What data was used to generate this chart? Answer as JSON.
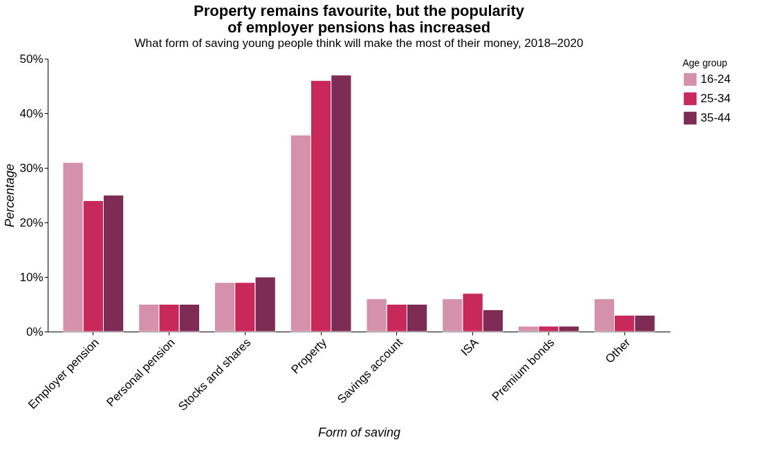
{
  "chart_data": {
    "type": "bar",
    "title": [
      "Property remains favourite, but the popularity",
      "of employer pensions has increased"
    ],
    "subtitle": "What form of saving young people think will make the most of their money, 2018–2020",
    "xlabel": "Form of saving",
    "ylabel": "Percentage",
    "legend_title": "Age group",
    "legend": "right",
    "grid": false,
    "categories": [
      "Employer pension",
      "Personal pension",
      "Stocks and shares",
      "Property",
      "Savings account",
      "ISA",
      "Premium bonds",
      "Other"
    ],
    "series": [
      {
        "name": "16-24",
        "color": "#d591aa",
        "values": [
          31,
          5,
          9,
          36,
          6,
          6,
          1,
          6
        ]
      },
      {
        "name": "25-34",
        "color": "#c8285a",
        "values": [
          24,
          5,
          9,
          46,
          5,
          7,
          1,
          3
        ]
      },
      {
        "name": "35-44",
        "color": "#7f2c55",
        "values": [
          25,
          5,
          10,
          47,
          5,
          4,
          1,
          3
        ]
      }
    ],
    "ylim": [
      0,
      50
    ],
    "yticks": [
      {
        "value": 0,
        "label": "0%"
      },
      {
        "value": 10,
        "label": "10%"
      },
      {
        "value": 20,
        "label": "20%"
      },
      {
        "value": 30,
        "label": "30%"
      },
      {
        "value": 40,
        "label": "40%"
      },
      {
        "value": 50,
        "label": "50%"
      }
    ]
  }
}
